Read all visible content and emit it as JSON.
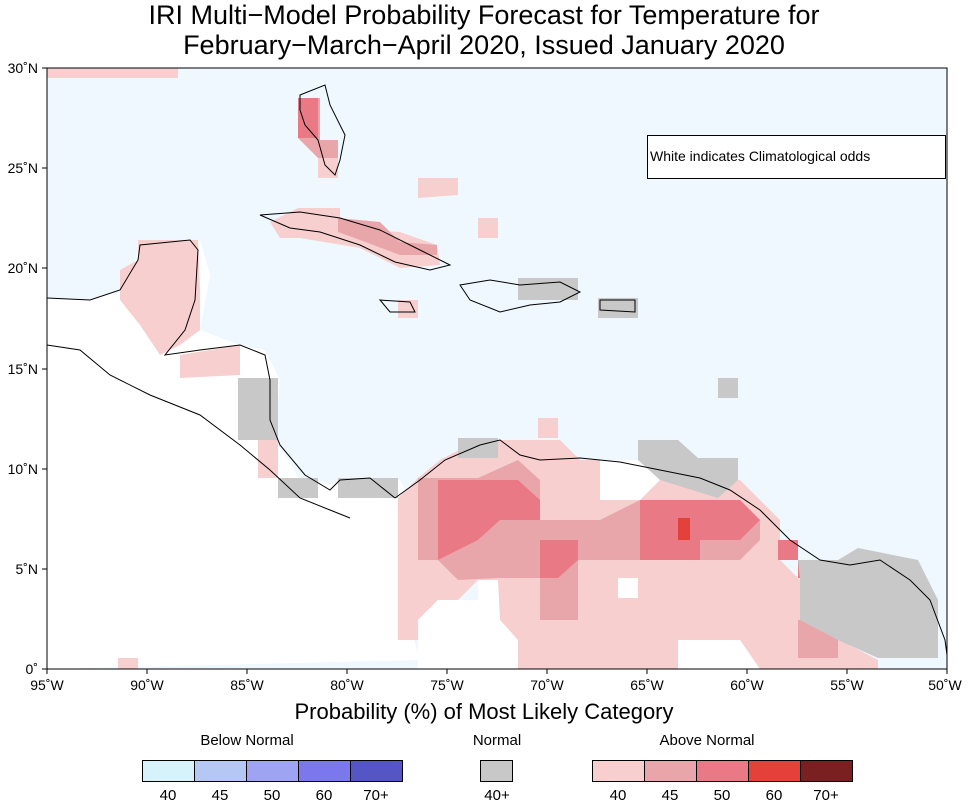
{
  "title": {
    "line1": "IRI Multi−Model Probability Forecast for Temperature for",
    "line2": "February−March−April 2020, Issued January 2020"
  },
  "map": {
    "ocean_color": "#eff8ff",
    "y_axis_labels": [
      "30˚N",
      "25˚N",
      "20˚N",
      "15˚N",
      "10˚N",
      "5˚N",
      "0˚"
    ],
    "x_axis_labels": [
      "95˚W",
      "90˚W",
      "85˚W",
      "80˚W",
      "75˚W",
      "70˚W",
      "65˚W",
      "60˚W",
      "55˚W",
      "50˚W"
    ],
    "note": "White indicates Climatological odds"
  },
  "legend": {
    "title": "Probability (%) of Most Likely Category",
    "below": {
      "label": "Below Normal",
      "ticks": [
        "40",
        "45",
        "50",
        "60",
        "70+"
      ],
      "colors": [
        "#d6f2fb",
        "#b5c8f3",
        "#9ea4f1",
        "#7b77ec",
        "#5555c6"
      ]
    },
    "normal": {
      "label": "Normal",
      "ticks": [
        "40+"
      ],
      "colors": [
        "#c8c8c8"
      ]
    },
    "above": {
      "label": "Above Normal",
      "ticks": [
        "40",
        "45",
        "50",
        "60",
        "70+"
      ],
      "colors": [
        "#f7cfcf",
        "#e9a6aa",
        "#e97a85",
        "#e5413b",
        "#7a2020"
      ]
    }
  }
}
